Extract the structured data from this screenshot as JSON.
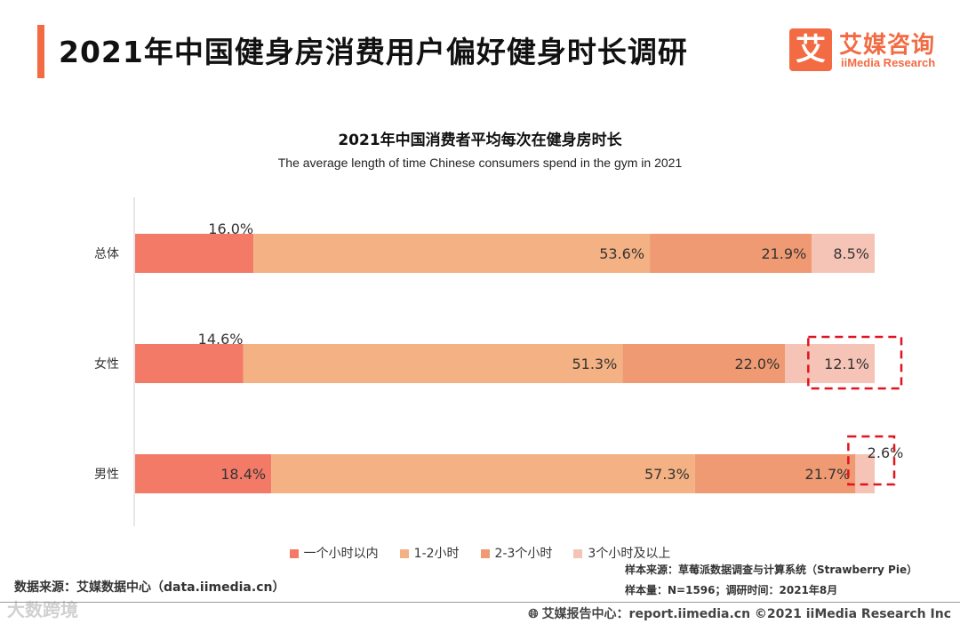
{
  "header": {
    "title": "2021年中国健身房消费用户偏好健身时长调研",
    "logo_mark": "艾",
    "logo_cn": "艾媒咨询",
    "logo_en": "iiMedia Research"
  },
  "chart_data": {
    "type": "bar",
    "orientation": "horizontal",
    "stacked": true,
    "percent_stacked": true,
    "title": "2021年中国消费者平均每次在健身房时长",
    "subtitle": "The average length of time Chinese consumers spend in the gym in 2021",
    "categories": [
      "总体",
      "女性",
      "男性"
    ],
    "series": [
      {
        "name": "一个小时以内",
        "color": "#f47a68",
        "values": [
          16.0,
          14.6,
          18.4
        ],
        "labels": [
          "16.0%",
          "14.6%",
          "18.4%"
        ]
      },
      {
        "name": "1-2小时",
        "color": "#f4b183",
        "values": [
          53.6,
          51.3,
          57.3
        ],
        "labels": [
          "53.6%",
          "51.3%",
          "57.3%"
        ]
      },
      {
        "name": "2-3个小时",
        "color": "#ef9a72",
        "values": [
          21.9,
          22.0,
          21.7
        ],
        "labels": [
          "21.9%",
          "22.0%",
          "21.7%"
        ]
      },
      {
        "name": "3个小时及以上",
        "color": "#f6c4b6",
        "values": [
          8.5,
          12.1,
          2.6
        ],
        "labels": [
          "8.5%",
          "12.1%",
          "2.6%"
        ]
      }
    ],
    "highlights": [
      {
        "category": "女性",
        "series": "3个小时及以上"
      },
      {
        "category": "男性",
        "series": "3个小时及以上"
      }
    ],
    "legend_position": "bottom",
    "grid": false
  },
  "footer": {
    "source": "数据来源：艾媒数据中心（data.iimedia.cn）",
    "sample_source": "样本来源：草莓派数据调查与计算系统（Strawberry Pie）",
    "sample_size": "样本量：N=1596；调研时间：2021年8月",
    "copyright": "艾媒报告中心：report.iimedia.cn   ©2021  iiMedia Research  Inc",
    "watermark": "大数跨境"
  }
}
